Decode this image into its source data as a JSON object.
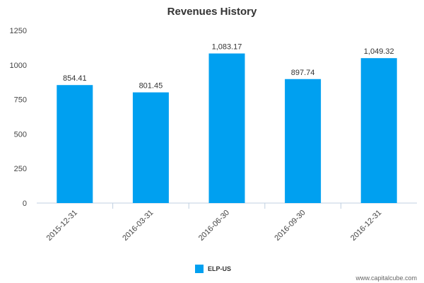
{
  "chart_data": {
    "type": "bar",
    "title": "Revenues History",
    "xlabel": "",
    "ylabel": "",
    "categories": [
      "2015-12-31",
      "2016-03-31",
      "2016-06-30",
      "2016-09-30",
      "2016-12-31"
    ],
    "series": [
      {
        "name": "ELP-US",
        "color": "#00a0f0",
        "values": [
          854.41,
          801.45,
          1083.17,
          897.74,
          1049.32
        ],
        "labels": [
          "854.41",
          "801.45",
          "1,083.17",
          "897.74",
          "1,049.32"
        ]
      }
    ],
    "ylim": [
      0,
      1250
    ],
    "yticks": [
      "0",
      "250",
      "500",
      "750",
      "1000",
      "1250"
    ],
    "grid": false,
    "legend_position": "bottom-center"
  },
  "credit": "www.capitalcube.com"
}
